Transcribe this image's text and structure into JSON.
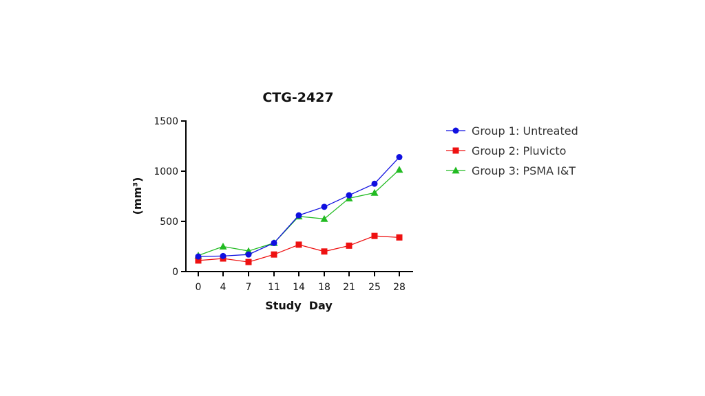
{
  "chart_data": {
    "type": "line",
    "title": "CTG-2427",
    "xlabel": "Study  Day",
    "ylabel": "(mm³)",
    "x": [
      0,
      4,
      7,
      11,
      14,
      18,
      21,
      25,
      28
    ],
    "x_tick_labels": [
      "0",
      "4",
      "7",
      "11",
      "14",
      "18",
      "21",
      "25",
      "28"
    ],
    "ylim": [
      0,
      1500
    ],
    "y_ticks": [
      0,
      500,
      1000,
      1500
    ],
    "y_tick_labels": [
      "0",
      "500",
      "1000",
      "1500"
    ],
    "grid": false,
    "legend_position": "right",
    "series": [
      {
        "name": "Group 1: Untreated",
        "color": "#1010e0",
        "marker": "circle",
        "values": [
          150,
          155,
          170,
          285,
          560,
          645,
          760,
          875,
          1140
        ]
      },
      {
        "name": "Group 2: Pluvicto",
        "color": "#ee1111",
        "marker": "square",
        "values": [
          110,
          130,
          95,
          170,
          268,
          200,
          258,
          355,
          340
        ]
      },
      {
        "name": "Group 3: PSMA I&T",
        "color": "#22bb22",
        "marker": "triangle",
        "values": [
          160,
          250,
          205,
          285,
          550,
          525,
          730,
          785,
          1015
        ]
      }
    ]
  }
}
